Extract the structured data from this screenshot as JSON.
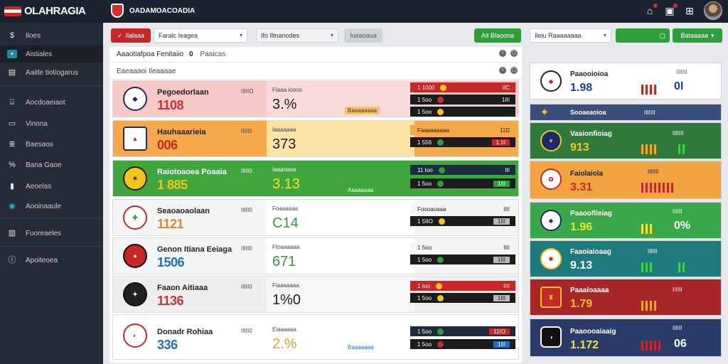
{
  "colors": {
    "accent_red": "#c62828",
    "accent_green": "#2e9e3a",
    "sidebar": "#262c37",
    "topbar": "#1c2330"
  },
  "topbar": {
    "logo": "OLAHRAGIA",
    "brand2": "OADAMOACOADIA",
    "icons": [
      "home-icon",
      "calendar-icon",
      "grid-icon"
    ]
  },
  "sidebar": {
    "items": [
      {
        "icon": "dollar-icon",
        "label": "Iloes"
      },
      {
        "icon": "square-icon",
        "label": "Aistiales"
      },
      {
        "icon": "doc-icon",
        "label": "Aaitle tiotiogarus"
      },
      {
        "icon": "bag-icon",
        "label": "Aocdoaeiaot"
      },
      {
        "icon": "card-icon",
        "label": "Vinnna"
      },
      {
        "icon": "stats-icon",
        "label": "Baesaos"
      },
      {
        "icon": "percent-icon",
        "label": "Bana Gaoe"
      },
      {
        "icon": "chart-icon",
        "label": "Aeoelas"
      },
      {
        "icon": "circle-icon",
        "label": "Aooinaaule"
      },
      {
        "icon": "inbox-icon",
        "label": "Fuoreaeles"
      },
      {
        "icon": "info-icon",
        "label": "Apoiteoea"
      }
    ]
  },
  "filters": {
    "red_button": "Ilalaaa",
    "select1": "Faralc Ieagea",
    "select2": "Ifo Iltnanodes",
    "grey_button": "Iueaoaua",
    "green_button": "Ait Blaoona",
    "select3": "Ileiu Raaaaaaaa",
    "green_button2": "Bataaaaa"
  },
  "section1": {
    "title": "Aaaotiafpoa Fenitaiio",
    "count": "0",
    "extra": "Paaicas"
  },
  "section2": {
    "title": "Eaeaaaoi Ileaaaae"
  },
  "rows": [
    {
      "name": "Pegoedorlaan",
      "score": "1108",
      "small": "IIIIIO",
      "mlabel": "Fiaaa ioooo",
      "mbig": "3.%",
      "pill": "Baaaaaaaa",
      "odds": [
        [
          "1 1000",
          "IIC"
        ],
        [
          "1 5oo",
          "1III"
        ],
        [
          "1 5oo",
          ""
        ]
      ]
    },
    {
      "name": "Hauhaaarieia",
      "score": "006",
      "small": "IIIII0",
      "mlabel": "Iaaaaaaa",
      "mbig": "373",
      "pill": "",
      "odds": [
        [
          "Faaaaaaaaa",
          "11D"
        ],
        [
          "1 556",
          "1 III"
        ]
      ]
    },
    {
      "name": "Raiotoaoea Poaaia",
      "score": "1 885",
      "small": "IIIII0",
      "mlabel": "Iaaaoaoa",
      "mbig": "3.13",
      "pill": "Aaaaaaaa",
      "odds": [
        [
          "11 Ioo",
          "III"
        ],
        [
          "1 5oo",
          "1III"
        ]
      ]
    },
    {
      "name": "Seaoaoaolaan",
      "score": "1121",
      "small": "IIIII0",
      "mlabel": "Foaaaaaa",
      "mbig": "C14",
      "pill": "",
      "odds": [
        [
          "Foooaoaaa",
          "IIII"
        ],
        [
          "1 5IIO",
          "1III"
        ]
      ]
    },
    {
      "name": "Genon Itiana Eeiaga",
      "score": "1506",
      "small": "IIIII0",
      "mlabel": "Ftoaaaaaa",
      "mbig": "671",
      "pill": "",
      "odds": [
        [
          "1 5oo",
          "IIII"
        ],
        [
          "1 5oo",
          "1III"
        ]
      ]
    },
    {
      "name": "Faaon Aitiaaa",
      "score": "1136",
      "small": "IIIII0",
      "mlabel": "Fiaaaaaaa",
      "mbig": "1%0",
      "pill": "",
      "odds": [
        [
          "1 Ioo",
          "IIII"
        ],
        [
          "1 5oo",
          "1III"
        ]
      ]
    },
    {
      "name": "Donadr Rohiaa",
      "score": "336",
      "small": "IIIII0",
      "mlabel": "Eiaaaaaa",
      "mbig": "2.%",
      "pill": "Baaaaaaa",
      "odds": [
        [
          "1 5oo",
          "11IO"
        ],
        [
          "1 5oo",
          "1III"
        ]
      ]
    }
  ],
  "right": {
    "cards": [
      {
        "title": "Paaooioioa",
        "score": "1.98",
        "big": "0I",
        "mini": "IIIIIII"
      },
      {
        "title": "Sooaeaoioa",
        "score": "",
        "big": "",
        "mini": "IIIIIII"
      },
      {
        "title": "Vaaionfioiag",
        "score": "913",
        "big": "",
        "mini": "IIIIIII"
      },
      {
        "title": "Faiolaiola",
        "score": "3.31",
        "big": "",
        "mini": "IIIIIII"
      },
      {
        "title": "Paaooflieiag",
        "score": "1.96",
        "big": "0%",
        "mini": "IIIIII"
      },
      {
        "title": "Faaoiaioaag",
        "score": "9.13",
        "big": "",
        "mini": "IIIIII"
      },
      {
        "title": "Paaaloaaaa",
        "score": "1.79",
        "big": "",
        "mini": "IIIIII"
      },
      {
        "title": "Paaoooaiaaig",
        "score": "1.172",
        "big": "06",
        "mini": "IIIIII"
      }
    ]
  }
}
